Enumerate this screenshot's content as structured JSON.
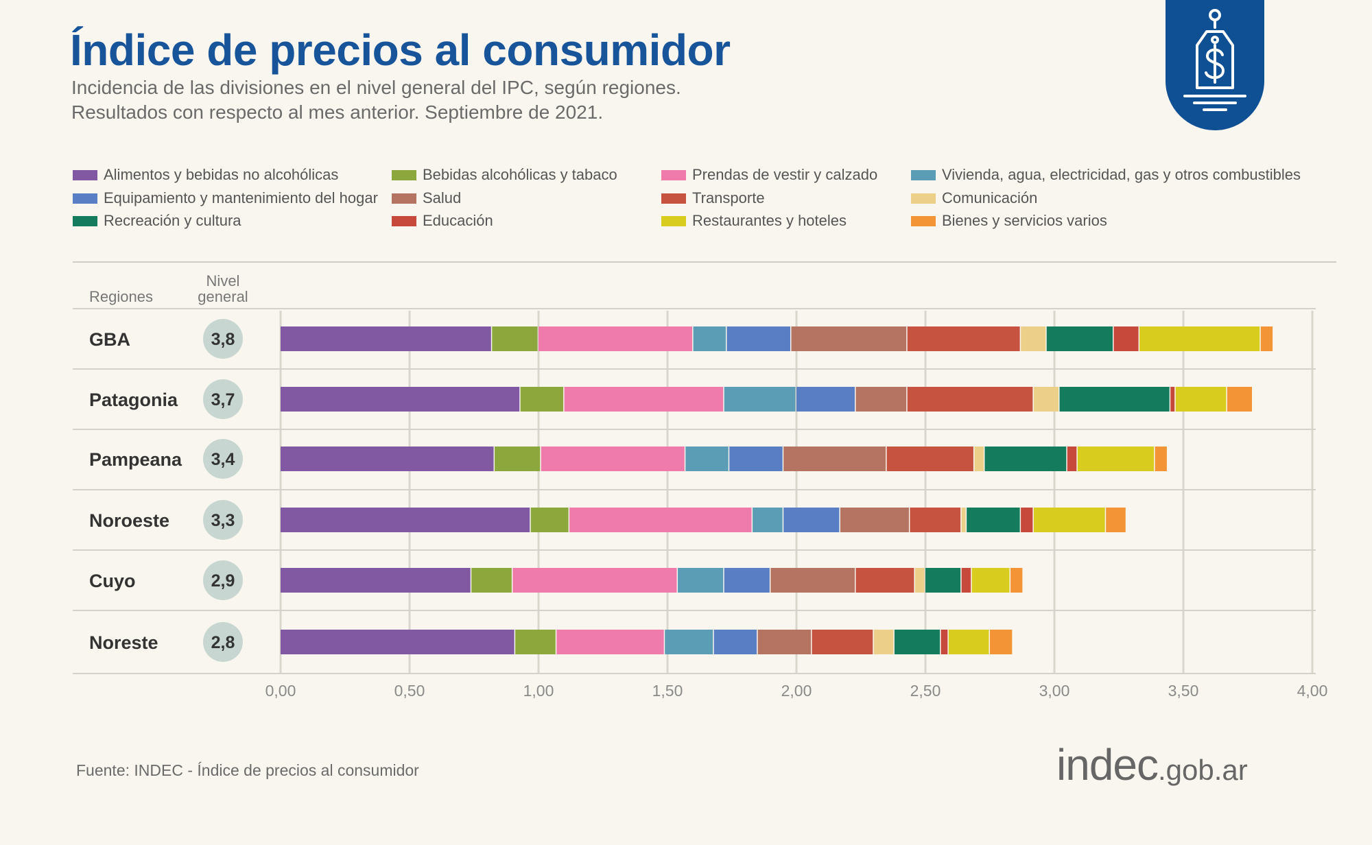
{
  "title": "Índice de precios al consumidor",
  "subtitle_line1": "Incidencia de las divisiones en el nivel general del IPC, según regiones.",
  "subtitle_line2": "Resultados con respecto al mes anterior. Septiembre de 2021.",
  "source": "Fuente: INDEC - Índice de precios al consumidor",
  "brand": {
    "name": "indec",
    "domain": ".gob.ar"
  },
  "badge_icon": "price-tag-dollar-icon",
  "colors": {
    "title": "#18549a",
    "badge": "#0f4f94",
    "grid": "#d9d6cc",
    "circle": "#c8d6d2"
  },
  "chart_data": {
    "type": "bar",
    "orientation": "horizontal",
    "stacked": true,
    "column_headers": {
      "region": "Regiones",
      "nivel": "Nivel general"
    },
    "categories": [
      "GBA",
      "Patagonia",
      "Pampeana",
      "Noroeste",
      "Cuyo",
      "Noreste"
    ],
    "nivel_general": [
      "3,8",
      "3,7",
      "3,4",
      "3,3",
      "2,9",
      "2,8"
    ],
    "xlim": [
      0,
      4
    ],
    "xticks": [
      "0,00",
      "0,50",
      "1,00",
      "1,50",
      "2,00",
      "2,50",
      "3,00",
      "3,50",
      "4,00"
    ],
    "legend_position": "top",
    "grid": true,
    "series": [
      {
        "name": "Alimentos y bebidas no alcohólicas",
        "color": "#8059a2",
        "values": [
          0.82,
          0.93,
          0.83,
          0.97,
          0.74,
          0.91
        ]
      },
      {
        "name": "Bebidas alcohólicas y tabaco",
        "color": "#8ca83c",
        "values": [
          0.18,
          0.17,
          0.18,
          0.15,
          0.16,
          0.16
        ]
      },
      {
        "name": "Prendas de vestir y calzado",
        "color": "#ef7bab",
        "values": [
          0.6,
          0.62,
          0.56,
          0.71,
          0.64,
          0.42
        ]
      },
      {
        "name": "Vivienda, agua, electricidad, gas y otros combustibles",
        "color": "#5b9db4",
        "values": [
          0.13,
          0.28,
          0.17,
          0.12,
          0.18,
          0.19
        ]
      },
      {
        "name": "Equipamiento y mantenimiento del hogar",
        "color": "#5a7ec3",
        "values": [
          0.25,
          0.23,
          0.21,
          0.22,
          0.18,
          0.17
        ]
      },
      {
        "name": "Salud",
        "color": "#b47461",
        "values": [
          0.45,
          0.2,
          0.4,
          0.27,
          0.33,
          0.21
        ]
      },
      {
        "name": "Transporte",
        "color": "#c55340",
        "values": [
          0.44,
          0.49,
          0.34,
          0.2,
          0.23,
          0.24
        ]
      },
      {
        "name": "Comunicación",
        "color": "#ecd08a",
        "values": [
          0.1,
          0.1,
          0.04,
          0.02,
          0.04,
          0.08
        ]
      },
      {
        "name": "Recreación y cultura",
        "color": "#147b5d",
        "values": [
          0.26,
          0.43,
          0.32,
          0.21,
          0.14,
          0.18
        ]
      },
      {
        "name": "Educación",
        "color": "#c7493c",
        "values": [
          0.1,
          0.02,
          0.04,
          0.05,
          0.04,
          0.03
        ]
      },
      {
        "name": "Restaurantes y hoteles",
        "color": "#d8cc1e",
        "values": [
          0.47,
          0.2,
          0.3,
          0.28,
          0.15,
          0.16
        ]
      },
      {
        "name": "Bienes y servicios varios",
        "color": "#f39537",
        "values": [
          0.05,
          0.1,
          0.05,
          0.08,
          0.05,
          0.09
        ]
      }
    ]
  }
}
